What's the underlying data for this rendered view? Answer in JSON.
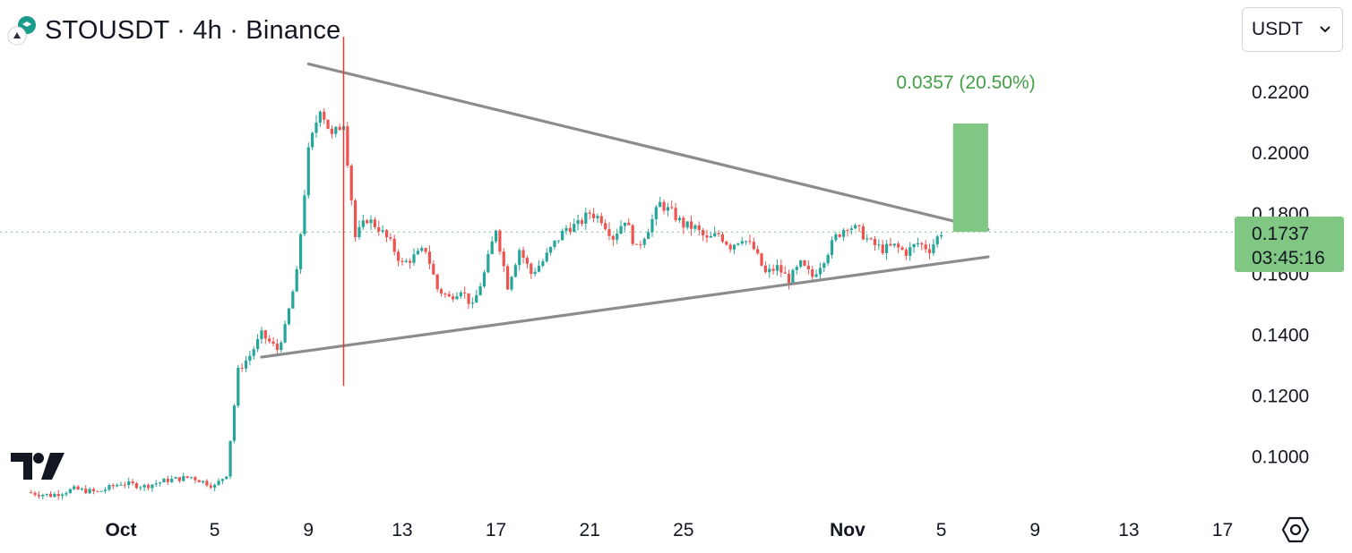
{
  "header": {
    "title": "STOUSDT · 4h · Binance",
    "currency_selector": "USDT"
  },
  "measure_label": "0.0357 (20.50%)",
  "price_badge": {
    "price": "0.1737",
    "countdown": "03:45:16"
  },
  "colors": {
    "up": "#26a69a",
    "down": "#ef5350",
    "trendline": "#8c8c8c",
    "measure_box": "#81c784",
    "measure_text": "#43a047",
    "price_line": "#81c784",
    "vertical_line": "#e53935"
  },
  "icons": {
    "exchange": "binance-coin-icon",
    "logo": "tradingview-logo-icon",
    "settings": "settings-hexagon-icon",
    "dropdown": "chevron-down-icon"
  },
  "chart_data": {
    "type": "candlestick",
    "symbol": "STOUSDT",
    "interval": "4h",
    "exchange": "Binance",
    "x_axis": {
      "start": "2024-09-27",
      "end": "2024-11-18",
      "ticks": [
        {
          "date": "2024-10-01",
          "label": "Oct",
          "bold": true
        },
        {
          "date": "2024-10-05",
          "label": "5"
        },
        {
          "date": "2024-10-09",
          "label": "9"
        },
        {
          "date": "2024-10-13",
          "label": "13"
        },
        {
          "date": "2024-10-17",
          "label": "17"
        },
        {
          "date": "2024-10-21",
          "label": "21"
        },
        {
          "date": "2024-10-25",
          "label": "25"
        },
        {
          "date": "2024-11-01",
          "label": "Nov",
          "bold": true
        },
        {
          "date": "2024-11-05",
          "label": "5"
        },
        {
          "date": "2024-11-09",
          "label": "9"
        },
        {
          "date": "2024-11-13",
          "label": "13"
        },
        {
          "date": "2024-11-17",
          "label": "17"
        }
      ]
    },
    "y_axis": {
      "min": 0.086,
      "max": 0.238,
      "ticks": [
        "0.2200",
        "0.2000",
        "0.1800",
        "0.1600",
        "0.1400",
        "0.1200",
        "0.1000"
      ]
    },
    "current_price": 0.1737,
    "close_path": [
      [
        "2024-09-27",
        0.088
      ],
      [
        "2024-09-28",
        0.087
      ],
      [
        "2024-09-29",
        0.089
      ],
      [
        "2024-09-30",
        0.088
      ],
      [
        "2024-10-01",
        0.091
      ],
      [
        "2024-10-02",
        0.09
      ],
      [
        "2024-10-03",
        0.092
      ],
      [
        "2024-10-04",
        0.093
      ],
      [
        "2024-10-05",
        0.09
      ],
      [
        "2024-10-05T12:00",
        0.094
      ],
      [
        "2024-10-06",
        0.128
      ],
      [
        "2024-10-06T12:00",
        0.133
      ],
      [
        "2024-10-07",
        0.14
      ],
      [
        "2024-10-07T16:00",
        0.135
      ],
      [
        "2024-10-08",
        0.142
      ],
      [
        "2024-10-08T12:00",
        0.16
      ],
      [
        "2024-10-09",
        0.2
      ],
      [
        "2024-10-09T12:00",
        0.215
      ],
      [
        "2024-10-10",
        0.205
      ],
      [
        "2024-10-10T12:00",
        0.21
      ],
      [
        "2024-10-11",
        0.172
      ],
      [
        "2024-10-11T12:00",
        0.178
      ],
      [
        "2024-10-12",
        0.175
      ],
      [
        "2024-10-12T12:00",
        0.17
      ],
      [
        "2024-10-13",
        0.163
      ],
      [
        "2024-10-14",
        0.168
      ],
      [
        "2024-10-14T12:00",
        0.155
      ],
      [
        "2024-10-15",
        0.152
      ],
      [
        "2024-10-15T12:00",
        0.155
      ],
      [
        "2024-10-16",
        0.149
      ],
      [
        "2024-10-16T12:00",
        0.16
      ],
      [
        "2024-10-17",
        0.175
      ],
      [
        "2024-10-17T12:00",
        0.156
      ],
      [
        "2024-10-18",
        0.168
      ],
      [
        "2024-10-18T12:00",
        0.16
      ],
      [
        "2024-10-19",
        0.164
      ],
      [
        "2024-10-19T12:00",
        0.17
      ],
      [
        "2024-10-20",
        0.175
      ],
      [
        "2024-10-20T12:00",
        0.176
      ],
      [
        "2024-10-21",
        0.18
      ],
      [
        "2024-10-21T12:00",
        0.178
      ],
      [
        "2024-10-22",
        0.172
      ],
      [
        "2024-10-22T12:00",
        0.178
      ],
      [
        "2024-10-23",
        0.168
      ],
      [
        "2024-10-23T12:00",
        0.175
      ],
      [
        "2024-10-24",
        0.183
      ],
      [
        "2024-10-24T12:00",
        0.18
      ],
      [
        "2024-10-25",
        0.176
      ],
      [
        "2024-10-25T12:00",
        0.175
      ],
      [
        "2024-10-26",
        0.171
      ],
      [
        "2024-10-26T12:00",
        0.173
      ],
      [
        "2024-10-27",
        0.169
      ],
      [
        "2024-10-27T12:00",
        0.172
      ],
      [
        "2024-10-28",
        0.168
      ],
      [
        "2024-10-28T12:00",
        0.16
      ],
      [
        "2024-10-29",
        0.162
      ],
      [
        "2024-10-29T12:00",
        0.158
      ],
      [
        "2024-10-30",
        0.163
      ],
      [
        "2024-10-30T12:00",
        0.159
      ],
      [
        "2024-10-31",
        0.165
      ],
      [
        "2024-10-31T12:00",
        0.172
      ],
      [
        "2024-11-01",
        0.176
      ],
      [
        "2024-11-01T12:00",
        0.174
      ],
      [
        "2024-11-02",
        0.17
      ],
      [
        "2024-11-02T12:00",
        0.168
      ],
      [
        "2024-11-03",
        0.169
      ],
      [
        "2024-11-03T12:00",
        0.167
      ],
      [
        "2024-11-04",
        0.17
      ],
      [
        "2024-11-04T12:00",
        0.168
      ],
      [
        "2024-11-05",
        0.1737
      ]
    ],
    "trendlines": [
      {
        "name": "upper",
        "from": [
          "2024-10-09",
          0.229
        ],
        "to": [
          "2024-11-07",
          0.1745
        ]
      },
      {
        "name": "lower",
        "from": [
          "2024-10-07",
          0.1325
        ],
        "to": [
          "2024-11-07",
          0.1655
        ]
      }
    ],
    "vertical_line": {
      "date": "2024-10-10T12:00",
      "from": 0.123,
      "to": 0.238
    },
    "measure": {
      "from_date": "2024-11-05T12:00",
      "to_date": "2024-11-07",
      "low": 0.1737,
      "high": 0.2094
    }
  }
}
